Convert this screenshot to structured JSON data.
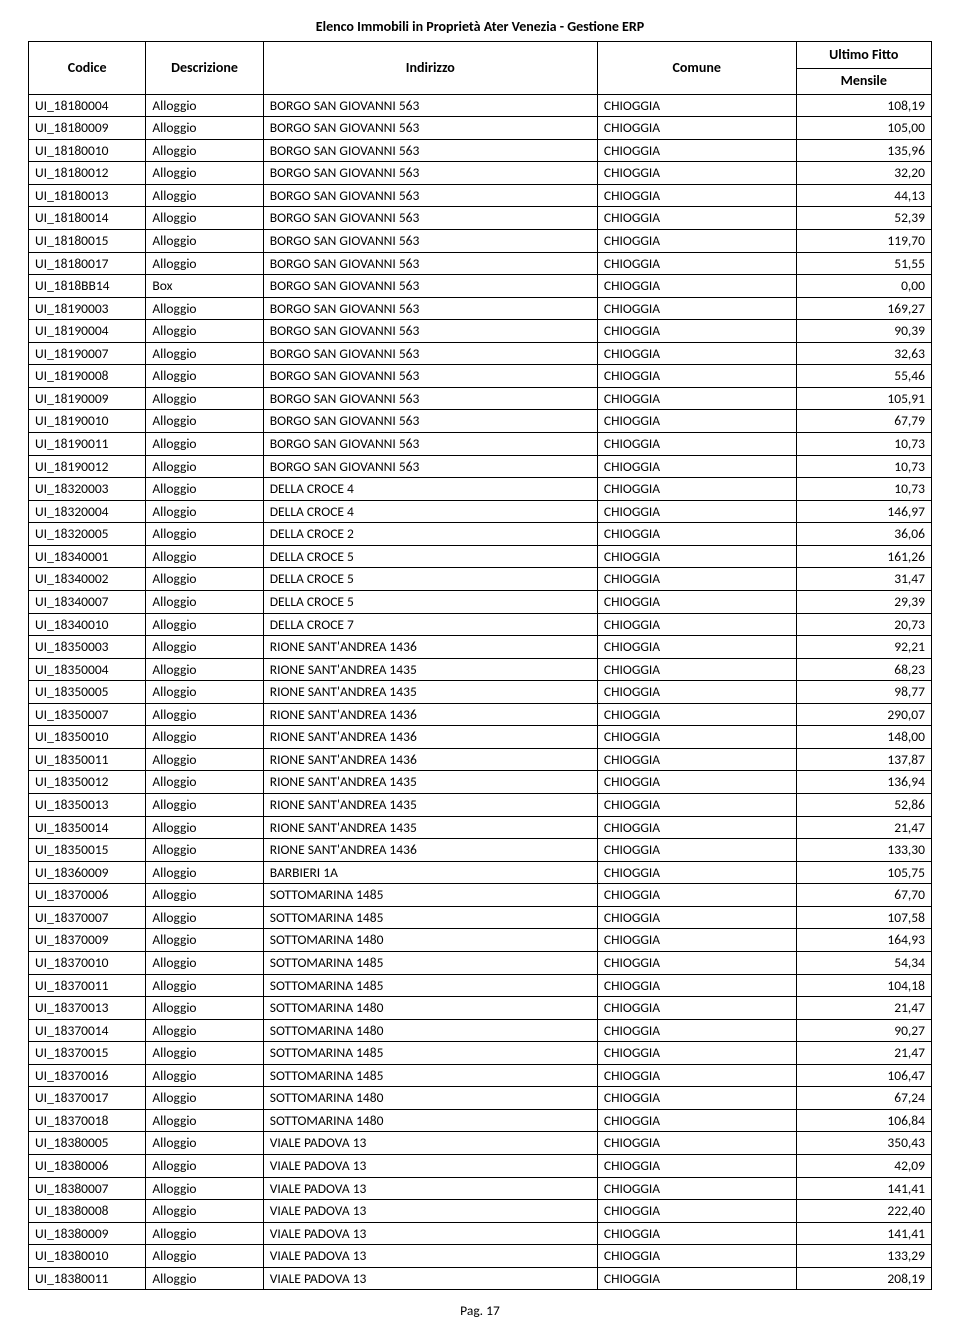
{
  "meta": {
    "background_color": "#ffffff",
    "text_color": "#000000",
    "border_color": "#000000",
    "font_family": "Calibri",
    "body_fontsize_pt": 10,
    "header_fontsize_pt": 11,
    "title_fontsize_pt": 11
  },
  "title": "Elenco Immobili in Proprietà Ater Venezia - Gestione ERP",
  "columns": {
    "codice": "Codice",
    "descrizione": "Descrizione",
    "indirizzo": "Indirizzo",
    "comune": "Comune",
    "fitto_line1": "Ultimo Fitto",
    "fitto_line2": "Mensile"
  },
  "column_widths_pct": {
    "codice": 13,
    "descrizione": 13,
    "indirizzo": 37,
    "comune": 22,
    "fitto": 15
  },
  "column_align": {
    "codice": "left",
    "descrizione": "left",
    "indirizzo": "left",
    "comune": "left",
    "fitto": "right"
  },
  "footer": "Pag. 17",
  "rows": [
    {
      "codice": "UI_18180004",
      "descrizione": "Alloggio",
      "indirizzo": "BORGO SAN GIOVANNI 563",
      "comune": "CHIOGGIA",
      "fitto": "108,19"
    },
    {
      "codice": "UI_18180009",
      "descrizione": "Alloggio",
      "indirizzo": "BORGO SAN GIOVANNI 563",
      "comune": "CHIOGGIA",
      "fitto": "105,00"
    },
    {
      "codice": "UI_18180010",
      "descrizione": "Alloggio",
      "indirizzo": "BORGO SAN GIOVANNI 563",
      "comune": "CHIOGGIA",
      "fitto": "135,96"
    },
    {
      "codice": "UI_18180012",
      "descrizione": "Alloggio",
      "indirizzo": "BORGO SAN GIOVANNI 563",
      "comune": "CHIOGGIA",
      "fitto": "32,20"
    },
    {
      "codice": "UI_18180013",
      "descrizione": "Alloggio",
      "indirizzo": "BORGO SAN GIOVANNI 563",
      "comune": "CHIOGGIA",
      "fitto": "44,13"
    },
    {
      "codice": "UI_18180014",
      "descrizione": "Alloggio",
      "indirizzo": "BORGO SAN GIOVANNI 563",
      "comune": "CHIOGGIA",
      "fitto": "52,39"
    },
    {
      "codice": "UI_18180015",
      "descrizione": "Alloggio",
      "indirizzo": "BORGO SAN GIOVANNI 563",
      "comune": "CHIOGGIA",
      "fitto": "119,70"
    },
    {
      "codice": "UI_18180017",
      "descrizione": "Alloggio",
      "indirizzo": "BORGO SAN GIOVANNI 563",
      "comune": "CHIOGGIA",
      "fitto": "51,55"
    },
    {
      "codice": "UI_1818BB14",
      "descrizione": "Box",
      "indirizzo": "BORGO SAN GIOVANNI 563",
      "comune": "CHIOGGIA",
      "fitto": "0,00"
    },
    {
      "codice": "UI_18190003",
      "descrizione": "Alloggio",
      "indirizzo": "BORGO SAN GIOVANNI 563",
      "comune": "CHIOGGIA",
      "fitto": "169,27"
    },
    {
      "codice": "UI_18190004",
      "descrizione": "Alloggio",
      "indirizzo": "BORGO SAN GIOVANNI 563",
      "comune": "CHIOGGIA",
      "fitto": "90,39"
    },
    {
      "codice": "UI_18190007",
      "descrizione": "Alloggio",
      "indirizzo": "BORGO SAN GIOVANNI 563",
      "comune": "CHIOGGIA",
      "fitto": "32,63"
    },
    {
      "codice": "UI_18190008",
      "descrizione": "Alloggio",
      "indirizzo": "BORGO SAN GIOVANNI 563",
      "comune": "CHIOGGIA",
      "fitto": "55,46"
    },
    {
      "codice": "UI_18190009",
      "descrizione": "Alloggio",
      "indirizzo": "BORGO SAN GIOVANNI 563",
      "comune": "CHIOGGIA",
      "fitto": "105,91"
    },
    {
      "codice": "UI_18190010",
      "descrizione": "Alloggio",
      "indirizzo": "BORGO SAN GIOVANNI 563",
      "comune": "CHIOGGIA",
      "fitto": "67,79"
    },
    {
      "codice": "UI_18190011",
      "descrizione": "Alloggio",
      "indirizzo": "BORGO SAN GIOVANNI 563",
      "comune": "CHIOGGIA",
      "fitto": "10,73"
    },
    {
      "codice": "UI_18190012",
      "descrizione": "Alloggio",
      "indirizzo": "BORGO SAN GIOVANNI 563",
      "comune": "CHIOGGIA",
      "fitto": "10,73"
    },
    {
      "codice": "UI_18320003",
      "descrizione": "Alloggio",
      "indirizzo": "DELLA CROCE 4",
      "comune": "CHIOGGIA",
      "fitto": "10,73"
    },
    {
      "codice": "UI_18320004",
      "descrizione": "Alloggio",
      "indirizzo": "DELLA CROCE 4",
      "comune": "CHIOGGIA",
      "fitto": "146,97"
    },
    {
      "codice": "UI_18320005",
      "descrizione": "Alloggio",
      "indirizzo": "DELLA CROCE 2",
      "comune": "CHIOGGIA",
      "fitto": "36,06"
    },
    {
      "codice": "UI_18340001",
      "descrizione": "Alloggio",
      "indirizzo": "DELLA CROCE 5",
      "comune": "CHIOGGIA",
      "fitto": "161,26"
    },
    {
      "codice": "UI_18340002",
      "descrizione": "Alloggio",
      "indirizzo": "DELLA CROCE 5",
      "comune": "CHIOGGIA",
      "fitto": "31,47"
    },
    {
      "codice": "UI_18340007",
      "descrizione": "Alloggio",
      "indirizzo": "DELLA CROCE 5",
      "comune": "CHIOGGIA",
      "fitto": "29,39"
    },
    {
      "codice": "UI_18340010",
      "descrizione": "Alloggio",
      "indirizzo": "DELLA CROCE 7",
      "comune": "CHIOGGIA",
      "fitto": "20,73"
    },
    {
      "codice": "UI_18350003",
      "descrizione": "Alloggio",
      "indirizzo": "RIONE SANT'ANDREA 1436",
      "comune": "CHIOGGIA",
      "fitto": "92,21"
    },
    {
      "codice": "UI_18350004",
      "descrizione": "Alloggio",
      "indirizzo": "RIONE SANT'ANDREA 1435",
      "comune": "CHIOGGIA",
      "fitto": "68,23"
    },
    {
      "codice": "UI_18350005",
      "descrizione": "Alloggio",
      "indirizzo": "RIONE SANT'ANDREA 1435",
      "comune": "CHIOGGIA",
      "fitto": "98,77"
    },
    {
      "codice": "UI_18350007",
      "descrizione": "Alloggio",
      "indirizzo": "RIONE SANT'ANDREA 1436",
      "comune": "CHIOGGIA",
      "fitto": "290,07"
    },
    {
      "codice": "UI_18350010",
      "descrizione": "Alloggio",
      "indirizzo": "RIONE SANT'ANDREA 1436",
      "comune": "CHIOGGIA",
      "fitto": "148,00"
    },
    {
      "codice": "UI_18350011",
      "descrizione": "Alloggio",
      "indirizzo": "RIONE SANT'ANDREA 1436",
      "comune": "CHIOGGIA",
      "fitto": "137,87"
    },
    {
      "codice": "UI_18350012",
      "descrizione": "Alloggio",
      "indirizzo": "RIONE SANT'ANDREA 1435",
      "comune": "CHIOGGIA",
      "fitto": "136,94"
    },
    {
      "codice": "UI_18350013",
      "descrizione": "Alloggio",
      "indirizzo": "RIONE SANT'ANDREA 1435",
      "comune": "CHIOGGIA",
      "fitto": "52,86"
    },
    {
      "codice": "UI_18350014",
      "descrizione": "Alloggio",
      "indirizzo": "RIONE SANT'ANDREA 1435",
      "comune": "CHIOGGIA",
      "fitto": "21,47"
    },
    {
      "codice": "UI_18350015",
      "descrizione": "Alloggio",
      "indirizzo": "RIONE SANT'ANDREA 1436",
      "comune": "CHIOGGIA",
      "fitto": "133,30"
    },
    {
      "codice": "UI_18360009",
      "descrizione": "Alloggio",
      "indirizzo": "BARBIERI 1A",
      "comune": "CHIOGGIA",
      "fitto": "105,75"
    },
    {
      "codice": "UI_18370006",
      "descrizione": "Alloggio",
      "indirizzo": "SOTTOMARINA 1485",
      "comune": "CHIOGGIA",
      "fitto": "67,70"
    },
    {
      "codice": "UI_18370007",
      "descrizione": "Alloggio",
      "indirizzo": "SOTTOMARINA 1485",
      "comune": "CHIOGGIA",
      "fitto": "107,58"
    },
    {
      "codice": "UI_18370009",
      "descrizione": "Alloggio",
      "indirizzo": "SOTTOMARINA 1480",
      "comune": "CHIOGGIA",
      "fitto": "164,93"
    },
    {
      "codice": "UI_18370010",
      "descrizione": "Alloggio",
      "indirizzo": "SOTTOMARINA 1485",
      "comune": "CHIOGGIA",
      "fitto": "54,34"
    },
    {
      "codice": "UI_18370011",
      "descrizione": "Alloggio",
      "indirizzo": "SOTTOMARINA 1485",
      "comune": "CHIOGGIA",
      "fitto": "104,18"
    },
    {
      "codice": "UI_18370013",
      "descrizione": "Alloggio",
      "indirizzo": "SOTTOMARINA 1480",
      "comune": "CHIOGGIA",
      "fitto": "21,47"
    },
    {
      "codice": "UI_18370014",
      "descrizione": "Alloggio",
      "indirizzo": "SOTTOMARINA 1480",
      "comune": "CHIOGGIA",
      "fitto": "90,27"
    },
    {
      "codice": "UI_18370015",
      "descrizione": "Alloggio",
      "indirizzo": "SOTTOMARINA 1485",
      "comune": "CHIOGGIA",
      "fitto": "21,47"
    },
    {
      "codice": "UI_18370016",
      "descrizione": "Alloggio",
      "indirizzo": "SOTTOMARINA 1485",
      "comune": "CHIOGGIA",
      "fitto": "106,47"
    },
    {
      "codice": "UI_18370017",
      "descrizione": "Alloggio",
      "indirizzo": "SOTTOMARINA 1480",
      "comune": "CHIOGGIA",
      "fitto": "67,24"
    },
    {
      "codice": "UI_18370018",
      "descrizione": "Alloggio",
      "indirizzo": "SOTTOMARINA 1480",
      "comune": "CHIOGGIA",
      "fitto": "106,84"
    },
    {
      "codice": "UI_18380005",
      "descrizione": "Alloggio",
      "indirizzo": "VIALE PADOVA 13",
      "comune": "CHIOGGIA",
      "fitto": "350,43"
    },
    {
      "codice": "UI_18380006",
      "descrizione": "Alloggio",
      "indirizzo": "VIALE PADOVA 13",
      "comune": "CHIOGGIA",
      "fitto": "42,09"
    },
    {
      "codice": "UI_18380007",
      "descrizione": "Alloggio",
      "indirizzo": "VIALE PADOVA 13",
      "comune": "CHIOGGIA",
      "fitto": "141,41"
    },
    {
      "codice": "UI_18380008",
      "descrizione": "Alloggio",
      "indirizzo": "VIALE PADOVA 13",
      "comune": "CHIOGGIA",
      "fitto": "222,40"
    },
    {
      "codice": "UI_18380009",
      "descrizione": "Alloggio",
      "indirizzo": "VIALE PADOVA 13",
      "comune": "CHIOGGIA",
      "fitto": "141,41"
    },
    {
      "codice": "UI_18380010",
      "descrizione": "Alloggio",
      "indirizzo": "VIALE PADOVA 13",
      "comune": "CHIOGGIA",
      "fitto": "133,29"
    },
    {
      "codice": "UI_18380011",
      "descrizione": "Alloggio",
      "indirizzo": "VIALE PADOVA 13",
      "comune": "CHIOGGIA",
      "fitto": "208,19"
    }
  ]
}
